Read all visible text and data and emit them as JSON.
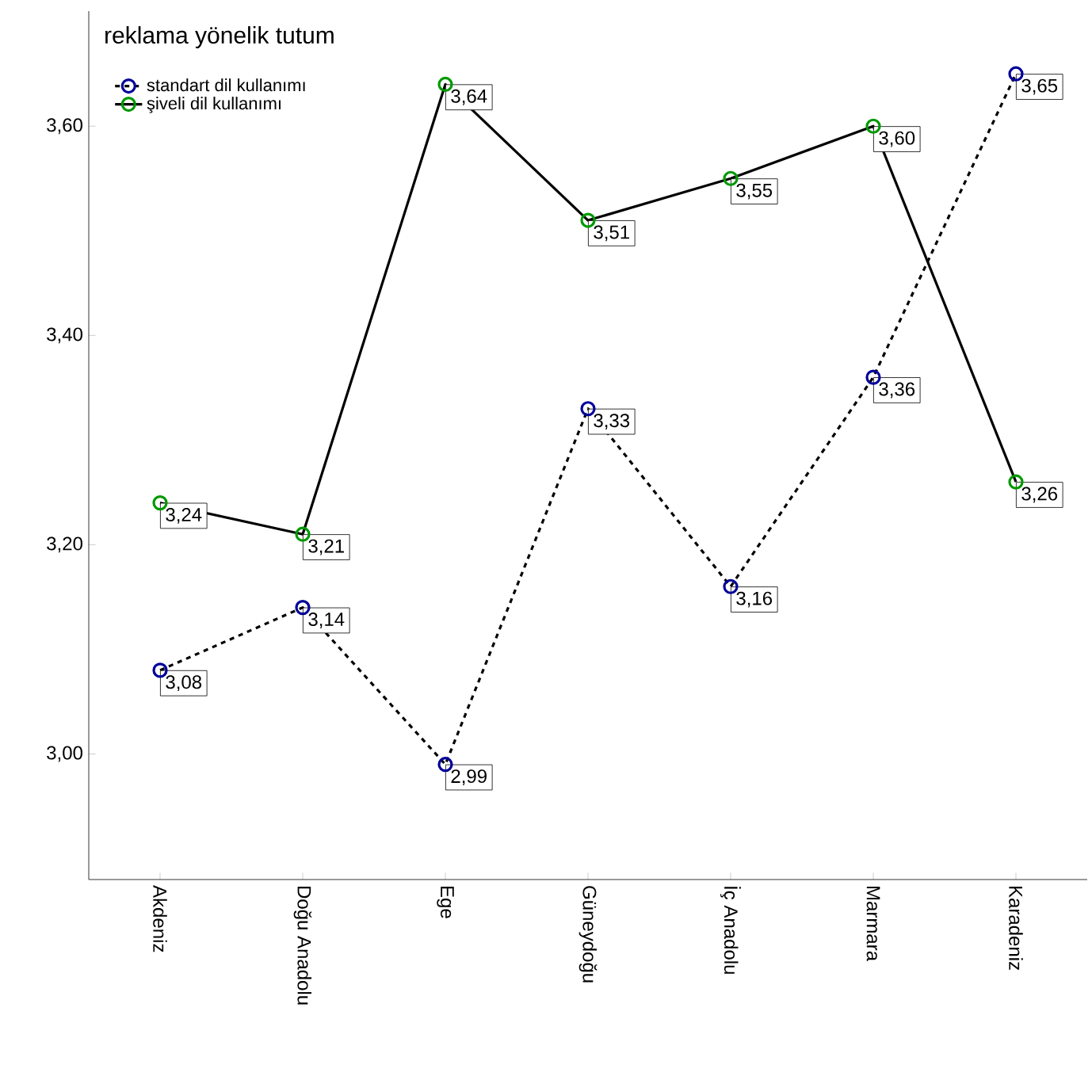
{
  "chart_data": {
    "type": "line",
    "ylabel": "reklama yönelik tutum",
    "categories": [
      "Akdeniz",
      "Doğu Anadolu",
      "Ege",
      "Güneydoğu",
      "İç Anadolu",
      "Marmara",
      "Karadeniz"
    ],
    "series": [
      {
        "name": "standart dil kullanımı",
        "color": "#000000",
        "line_style": "dashed",
        "values": [
          3.08,
          3.14,
          2.99,
          3.33,
          3.16,
          3.36,
          3.65
        ],
        "value_labels": [
          "3,08",
          "3,14",
          "2,99",
          "3,33",
          "3,16",
          "3,36",
          "3,65"
        ]
      },
      {
        "name": "şiveli dil kullanımı",
        "color": "#000000",
        "line_style": "solid",
        "values": [
          3.24,
          3.21,
          3.64,
          3.51,
          3.55,
          3.6,
          3.26
        ],
        "value_labels": [
          "3,24",
          "3,21",
          "3,64",
          "3,51",
          "3,55",
          "3,60",
          "3,26"
        ]
      }
    ],
    "ylim": [
      2.88,
      3.71
    ],
    "yticks": [
      {
        "value": 3.0,
        "label": "3,00"
      },
      {
        "value": 3.2,
        "label": "3,20"
      },
      {
        "value": 3.4,
        "label": "3,40"
      },
      {
        "value": 3.6,
        "label": "3,60"
      }
    ],
    "marker": "circle",
    "legend": "top left",
    "grid": false
  }
}
